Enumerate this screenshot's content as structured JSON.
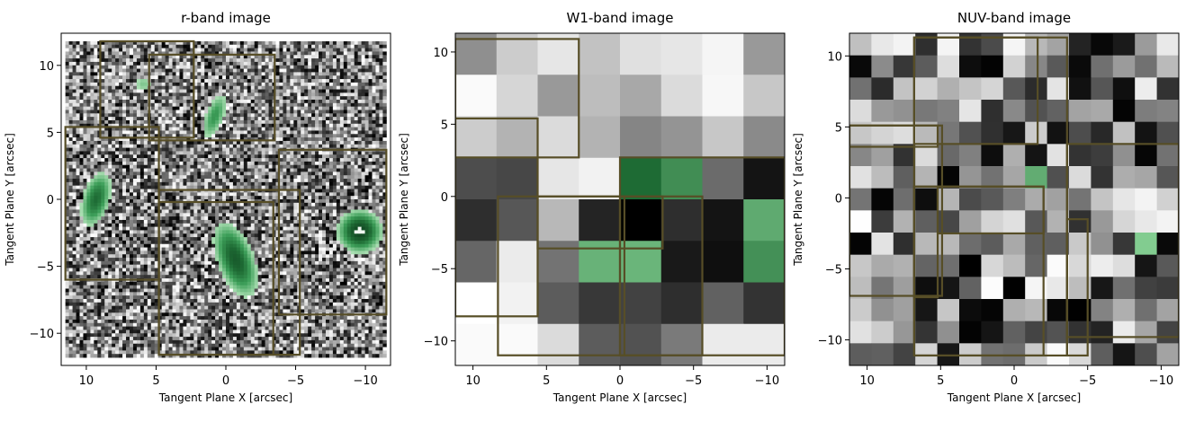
{
  "chart_data": [
    {
      "type": "heatmap",
      "title": "r-band image",
      "xlabel": "Tangent Plane X [arcsec]",
      "ylabel": "Tangent Plane Y [arcsec]",
      "xlim": [
        11.8,
        -11.8
      ],
      "ylim": [
        -12.4,
        12.4
      ],
      "xticks": [
        10,
        5,
        0,
        -5,
        -10
      ],
      "yticks": [
        10,
        5,
        0,
        -5,
        -10
      ],
      "extent": [
        11.5,
        -11.5,
        -11.8,
        11.8
      ],
      "grid": {
        "cols": 90,
        "rows": 92,
        "noise_seed": 7
      },
      "sources": [
        {
          "x": -9.6,
          "y": -2.4,
          "sx": 1.0,
          "sy": 1.0,
          "theta": 0,
          "amp": 1.0
        },
        {
          "x": -0.7,
          "y": -4.5,
          "sx": 0.85,
          "sy": 1.9,
          "theta": -20,
          "amp": 0.85
        },
        {
          "x": 9.3,
          "y": 0.0,
          "sx": 0.65,
          "sy": 1.4,
          "theta": 15,
          "amp": 0.75
        },
        {
          "x": 0.8,
          "y": 6.2,
          "sx": 0.5,
          "sy": 1.3,
          "theta": 20,
          "amp": 0.55
        },
        {
          "x": 5.9,
          "y": 8.6,
          "sx": 0.55,
          "sy": 0.55,
          "theta": 0,
          "amp": 0.35
        }
      ],
      "boxes": [
        {
          "x0": 9.0,
          "x1": 2.3,
          "y0": 4.6,
          "y1": 11.8
        },
        {
          "x0": 5.5,
          "x1": -3.5,
          "y0": 4.4,
          "y1": 10.8
        },
        {
          "x0": 11.5,
          "x1": 4.8,
          "y0": -6.0,
          "y1": 5.4
        },
        {
          "x0": 4.8,
          "x1": -5.3,
          "y0": -11.6,
          "y1": 0.7
        },
        {
          "x0": 4.8,
          "x1": -3.4,
          "y0": -11.6,
          "y1": -0.2
        },
        {
          "x0": -3.8,
          "x1": -11.5,
          "y0": -8.6,
          "y1": 3.7
        }
      ]
    },
    {
      "type": "heatmap",
      "title": "W1-band image",
      "xlabel": "Tangent Plane X [arcsec]",
      "ylabel": "",
      "xlim": [
        11.2,
        -11.2
      ],
      "ylim": [
        -11.7,
        11.3
      ],
      "xticks": [
        10,
        5,
        0,
        -5,
        -10
      ],
      "yticks": [
        10,
        5,
        0,
        -5,
        -10
      ],
      "extent": [
        11.2,
        -11.2,
        -11.7,
        11.3
      ],
      "grid": {
        "cols": 8,
        "rows": 8
      },
      "values": [
        [
          0.44,
          0.2,
          0.1,
          0.24,
          0.12,
          0.1,
          0.04,
          0.4
        ],
        [
          0.02,
          0.16,
          0.4,
          0.26,
          0.34,
          0.14,
          0.03,
          0.22
        ],
        [
          0.2,
          0.3,
          0.14,
          0.3,
          0.48,
          0.42,
          0.22,
          0.46
        ],
        [
          0.7,
          0.72,
          0.1,
          0.05,
          0.6,
          0.5,
          0.58,
          0.92
        ],
        [
          0.82,
          0.66,
          0.28,
          0.86,
          1.0,
          0.82,
          0.92,
          0.5
        ],
        [
          0.6,
          0.08,
          0.55,
          0.4,
          0.04,
          0.9,
          0.94,
          0.7
        ],
        [
          0.0,
          0.05,
          0.64,
          0.78,
          0.74,
          0.82,
          0.62,
          0.8
        ],
        [
          0.02,
          0.02,
          0.14,
          0.64,
          0.68,
          0.52,
          0.08,
          0.08
        ]
      ],
      "green": [
        [
          3,
          5,
          0.32
        ],
        [
          3,
          4,
          0.0
        ],
        [
          5,
          3,
          0.68
        ],
        [
          5,
          4,
          0.7
        ],
        [
          4,
          7,
          0.6
        ],
        [
          5,
          7,
          0.35
        ]
      ],
      "boxes": [
        {
          "x0": 11.2,
          "x1": 2.8,
          "y0": 2.7,
          "y1": 10.9
        },
        {
          "x0": 11.2,
          "x1": 5.6,
          "y0": -8.3,
          "y1": 5.4
        },
        {
          "x0": 8.3,
          "x1": -0.3,
          "y0": -11.0,
          "y1": 0.0
        },
        {
          "x0": 5.6,
          "x1": -2.9,
          "y0": -3.6,
          "y1": 0.0
        },
        {
          "x0": 0.0,
          "x1": -11.2,
          "y0": -11.0,
          "y1": 2.7
        },
        {
          "x0": 0.0,
          "x1": -5.6,
          "y0": -11.0,
          "y1": 0.0
        }
      ]
    },
    {
      "type": "heatmap",
      "title": "NUV-band image",
      "xlabel": "Tangent Plane X [arcsec]",
      "ylabel": "Tangent Plane Y [arcsec]",
      "xlim": [
        11.2,
        -11.2
      ],
      "ylim": [
        -11.8,
        11.6
      ],
      "xticks": [
        10,
        5,
        0,
        -5,
        -10
      ],
      "yticks": [
        10,
        5,
        0,
        -5,
        -10
      ],
      "extent": [
        11.2,
        -11.2,
        -11.8,
        11.6
      ],
      "grid": {
        "cols": 15,
        "rows": 15,
        "noise_seed": 31
      },
      "green": [
        [
          6,
          8,
          0.62
        ],
        [
          9,
          13,
          0.92
        ]
      ],
      "boxes": [
        {
          "x0": 6.8,
          "x1": -3.6,
          "y0": -11.1,
          "y1": 11.3
        },
        {
          "x0": 6.8,
          "x1": -1.6,
          "y0": 3.8,
          "y1": 11.3
        },
        {
          "x0": 11.2,
          "x1": 5.2,
          "y0": 3.6,
          "y1": 5.1
        },
        {
          "x0": 11.2,
          "x1": 4.9,
          "y0": -6.9,
          "y1": 5.1
        },
        {
          "x0": 6.8,
          "x1": -2.0,
          "y0": -11.1,
          "y1": 0.8
        },
        {
          "x0": 5.2,
          "x1": -2.0,
          "y0": -2.5,
          "y1": 0.8
        },
        {
          "x0": -3.6,
          "x1": -11.2,
          "y0": -9.8,
          "y1": 3.8
        },
        {
          "x0": -3.6,
          "x1": -5.0,
          "y0": -11.1,
          "y1": -1.5
        },
        {
          "x0": 6.8,
          "x1": 5.2,
          "y0": -7.0,
          "y1": 0.8
        }
      ]
    }
  ],
  "colors": {
    "box": "#574e27",
    "green_dark": "#1e6b34",
    "green_light": "#8bd498"
  }
}
